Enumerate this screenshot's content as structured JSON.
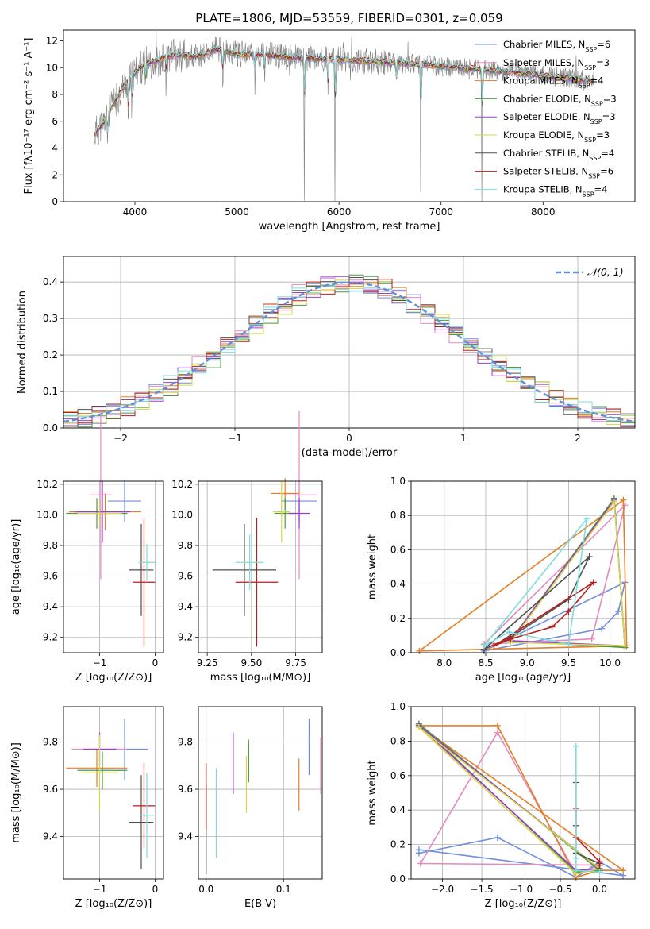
{
  "figure_title": "PLATE=1806, MJD=53559, FIBERID=0301, z=0.059",
  "models": [
    {
      "name": "Chabrier MILES",
      "n": "6",
      "color": "#6f8fdc"
    },
    {
      "name": "Salpeter MILES",
      "n": "3",
      "color": "#e48ac0"
    },
    {
      "name": "Kroupa MILES",
      "n": "4",
      "color": "#e27f27"
    },
    {
      "name": "Chabrier ELODIE",
      "n": "3",
      "color": "#4f9a3c"
    },
    {
      "name": "Salpeter ELODIE",
      "n": "3",
      "color": "#9a3ec9"
    },
    {
      "name": "Kroupa ELODIE",
      "n": "3",
      "color": "#d4d84a"
    },
    {
      "name": "Chabrier STELIB",
      "n": "4",
      "color": "#505050"
    },
    {
      "name": "Salpeter STELIB",
      "n": "6",
      "color": "#b81c1c"
    },
    {
      "name": "Kroupa STELIB",
      "n": "4",
      "color": "#7fdcdc"
    }
  ],
  "chart_data": [
    {
      "id": "spectrum",
      "type": "line",
      "xlabel": "wavelength [Angstrom, rest frame]",
      "ylabel": "Flux [fλ10⁻¹⁷ erg cm⁻² s⁻¹ A⁻¹]",
      "xlim": [
        3300,
        8900
      ],
      "ylim": [
        0,
        12.8
      ],
      "xticks": [
        4000,
        5000,
        6000,
        7000,
        8000
      ],
      "yticks": [
        0,
        2,
        4,
        6,
        8,
        10,
        12
      ],
      "legend": "top-right",
      "continuum_x": [
        3600,
        3700,
        3800,
        3900,
        4000,
        4100,
        4200,
        4300,
        4400,
        4500,
        4600,
        4700,
        4800,
        4900,
        5000,
        5200,
        5500,
        6000,
        6500,
        7000,
        7500,
        8000,
        8500
      ],
      "continuum_y": [
        5.0,
        6.0,
        7.4,
        8.7,
        9.6,
        10.3,
        10.5,
        10.8,
        10.9,
        10.9,
        10.8,
        11.1,
        11.4,
        11.2,
        11.0,
        11.0,
        10.8,
        10.6,
        10.4,
        10.1,
        9.8,
        9.4,
        9.0
      ],
      "absorption_lines": [
        [
          3730,
          4.2
        ],
        [
          3934,
          5.6
        ],
        [
          3969,
          5.8
        ],
        [
          4102,
          8.5
        ],
        [
          4305,
          8.7
        ],
        [
          4862,
          9.0
        ],
        [
          5175,
          8.8
        ],
        [
          5270,
          9.3
        ],
        [
          5660,
          0.3
        ],
        [
          5890,
          7.5
        ],
        [
          5960,
          0.2
        ],
        [
          6563,
          8.6
        ],
        [
          6800,
          0.0
        ],
        [
          7400,
          0.0
        ]
      ]
    },
    {
      "id": "residual-histogram",
      "type": "line",
      "xlabel": "(data-model)/error",
      "ylabel": "Normed distribution",
      "xlim": [
        -2.5,
        2.5
      ],
      "ylim": [
        0,
        0.47
      ],
      "xticks": [
        -2,
        -1,
        0,
        1,
        2
      ],
      "yticks": [
        0.0,
        0.1,
        0.2,
        0.3,
        0.4
      ],
      "legend_label": "𝒩(0, 1)",
      "legend_color": "#5e8fdc"
    },
    {
      "id": "age-vs-Z",
      "type": "scatter",
      "xlabel": "Z [log₁₀(Z/Z⊙)]",
      "ylabel": "age  [log₁₀(age/yr)]",
      "xlim": [
        -1.65,
        0.15
      ],
      "ylim": [
        9.1,
        10.22
      ],
      "xticks": [
        -1,
        0
      ],
      "yticks": [
        9.2,
        9.4,
        9.6,
        9.8,
        10.0,
        10.2
      ],
      "points": [
        {
          "x": -0.55,
          "y": 10.09,
          "xe": 0.3,
          "ye": 0.14
        },
        {
          "x": -0.98,
          "y": 10.13,
          "xe": 0.2,
          "ye": 0.55
        },
        {
          "x": -0.9,
          "y": 10.02,
          "xe": 0.65,
          "ye": 0.12
        },
        {
          "x": -1.05,
          "y": 10.01,
          "xe": 0.55,
          "ye": 0.1
        },
        {
          "x": -0.95,
          "y": 10.02,
          "xe": 0.5,
          "ye": 0.2
        },
        {
          "x": -1.0,
          "y": 10.01,
          "xe": 0.4,
          "ye": 0.08
        },
        {
          "x": -0.25,
          "y": 9.64,
          "xe": 0.22,
          "ye": 0.3
        },
        {
          "x": -0.2,
          "y": 9.56,
          "xe": 0.2,
          "ye": 0.42
        },
        {
          "x": -0.15,
          "y": 9.69,
          "xe": 0.15,
          "ye": 0.12
        }
      ]
    },
    {
      "id": "age-vs-mass",
      "type": "scatter",
      "xlabel": "mass [log₁₀(M/M⊙)]",
      "ylabel": "",
      "xlim": [
        9.2,
        9.9
      ],
      "ylim": [
        9.1,
        10.22
      ],
      "xticks": [
        9.25,
        9.5,
        9.75
      ],
      "yticks": [
        9.2,
        9.4,
        9.6,
        9.8,
        10.0,
        10.2
      ],
      "points": [
        {
          "x": 9.77,
          "y": 10.09,
          "xe": 0.1,
          "ye": 0.14
        },
        {
          "x": 9.77,
          "y": 10.13,
          "xe": 0.1,
          "ye": 0.55
        },
        {
          "x": 9.69,
          "y": 10.14,
          "xe": 0.08,
          "ye": 0.1
        },
        {
          "x": 9.69,
          "y": 10.01,
          "xe": 0.06,
          "ye": 0.1
        },
        {
          "x": 9.77,
          "y": 10.01,
          "xe": 0.06,
          "ye": 0.1
        },
        {
          "x": 9.67,
          "y": 10.02,
          "xe": 0.05,
          "ye": 0.2
        },
        {
          "x": 9.46,
          "y": 9.64,
          "xe": 0.18,
          "ye": 0.3
        },
        {
          "x": 9.53,
          "y": 9.56,
          "xe": 0.12,
          "ye": 0.42
        },
        {
          "x": 9.49,
          "y": 9.69,
          "xe": 0.08,
          "ye": 0.18
        }
      ]
    },
    {
      "id": "mass-weight-vs-age",
      "type": "line",
      "xlabel": "age  [log₁₀(age/yr)]",
      "ylabel": "mass weight",
      "xlim": [
        7.6,
        10.3
      ],
      "ylim": [
        0,
        1.0
      ],
      "xticks": [
        8.0,
        8.5,
        9.0,
        9.5,
        10.0
      ],
      "yticks": [
        0.0,
        0.2,
        0.4,
        0.6,
        0.8,
        1.0
      ],
      "series": [
        {
          "x": [
            8.48,
            9.9,
            10.1,
            10.18,
            8.48
          ],
          "y": [
            0.01,
            0.14,
            0.24,
            0.41,
            0.01
          ]
        },
        {
          "x": [
            8.48,
            9.78,
            10.18,
            8.48
          ],
          "y": [
            0.05,
            0.08,
            0.86,
            0.05
          ]
        },
        {
          "x": [
            7.7,
            10.16,
            10.2,
            7.7
          ],
          "y": [
            0.01,
            0.89,
            0.04,
            0.01
          ]
        },
        {
          "x": [
            8.8,
            10.05,
            10.18,
            8.8
          ],
          "y": [
            0.07,
            0.9,
            0.03,
            0.07
          ]
        },
        {
          "x": [
            8.8,
            10.05,
            10.18,
            8.8
          ],
          "y": [
            0.07,
            0.89,
            0.04,
            0.07
          ]
        },
        {
          "x": [
            8.8,
            10.05,
            10.18,
            8.8
          ],
          "y": [
            0.06,
            0.88,
            0.04,
            0.06
          ]
        },
        {
          "x": [
            8.48,
            8.8,
            9.5,
            9.75,
            8.48
          ],
          "y": [
            0.02,
            0.09,
            0.31,
            0.56,
            0.02
          ]
        },
        {
          "x": [
            8.6,
            8.8,
            9.3,
            9.5,
            9.8,
            8.6
          ],
          "y": [
            0.04,
            0.08,
            0.15,
            0.24,
            0.41,
            0.04
          ]
        },
        {
          "x": [
            8.48,
            8.78,
            9.5,
            9.72,
            8.48
          ],
          "y": [
            0.04,
            0.12,
            0.05,
            0.78,
            0.04
          ]
        }
      ]
    },
    {
      "id": "mass-vs-Z",
      "type": "scatter",
      "xlabel": "Z [log₁₀(Z/Z⊙)]",
      "ylabel": "mass [log₁₀(M/M⊙)]",
      "xlim": [
        -1.65,
        0.15
      ],
      "ylim": [
        9.22,
        9.95
      ],
      "xticks": [
        -1,
        0
      ],
      "yticks": [
        9.4,
        9.6,
        9.8
      ],
      "points": [
        {
          "x": -0.55,
          "y": 9.77,
          "xe": 0.42,
          "ye": 0.13
        },
        {
          "x": -1.0,
          "y": 9.77,
          "xe": 0.5,
          "ye": 0.07
        },
        {
          "x": -1.05,
          "y": 9.69,
          "xe": 0.55,
          "ye": 0.08
        },
        {
          "x": -0.95,
          "y": 9.68,
          "xe": 0.45,
          "ye": 0.08
        },
        {
          "x": -1.0,
          "y": 9.77,
          "xe": 0.3,
          "ye": 0.07
        },
        {
          "x": -1.0,
          "y": 9.67,
          "xe": 0.32,
          "ye": 0.16
        },
        {
          "x": -0.25,
          "y": 9.46,
          "xe": 0.22,
          "ye": 0.2
        },
        {
          "x": -0.2,
          "y": 9.53,
          "xe": 0.2,
          "ye": 0.18
        },
        {
          "x": -0.15,
          "y": 9.49,
          "xe": 0.12,
          "ye": 0.18
        }
      ]
    },
    {
      "id": "mass-vs-ebv",
      "type": "scatter",
      "xlabel": "E(B-V)",
      "ylabel": "",
      "xlim": [
        -0.01,
        0.15
      ],
      "ylim": [
        9.22,
        9.95
      ],
      "xticks": [
        0.0,
        0.1
      ],
      "yticks": [
        9.4,
        9.6,
        9.8
      ],
      "points": [
        {
          "x": 0.133,
          "y": 9.78,
          "xe": 0,
          "ye": 0.12
        },
        {
          "x": 0.148,
          "y": 9.7,
          "xe": 0,
          "ye": 0.12
        },
        {
          "x": 0.12,
          "y": 9.62,
          "xe": 0,
          "ye": 0.11
        },
        {
          "x": 0.055,
          "y": 9.72,
          "xe": 0,
          "ye": 0.09
        },
        {
          "x": 0.035,
          "y": 9.71,
          "xe": 0,
          "ye": 0.13
        },
        {
          "x": 0.052,
          "y": 9.62,
          "xe": 0,
          "ye": 0.12
        },
        {
          "x": 0.0,
          "y": 9.43,
          "xe": 0,
          "ye": 0.19
        },
        {
          "x": 0.0,
          "y": 9.57,
          "xe": 0,
          "ye": 0.14
        },
        {
          "x": 0.013,
          "y": 9.5,
          "xe": 0,
          "ye": 0.19
        }
      ]
    },
    {
      "id": "mass-weight-vs-Z",
      "type": "line",
      "xlabel": "Z [log₁₀(Z/Z⊙)]",
      "ylabel": "mass weight",
      "xlim": [
        -2.4,
        0.45
      ],
      "ylim": [
        0,
        1.0
      ],
      "xticks": [
        -2.0,
        -1.5,
        -1.0,
        -0.5,
        0.0
      ],
      "yticks": [
        0.0,
        0.2,
        0.4,
        0.6,
        0.8,
        1.0
      ],
      "series": [
        {
          "x": [
            -2.3,
            -1.3,
            -0.3,
            0.0,
            0.3,
            -2.3
          ],
          "y": [
            0.15,
            0.24,
            0.01,
            0.1,
            0.02,
            0.17
          ]
        },
        {
          "x": [
            -2.28,
            -1.3,
            -0.3,
            0.0,
            -2.28
          ],
          "y": [
            0.09,
            0.85,
            0.03,
            0.08,
            0.09
          ]
        },
        {
          "x": [
            -2.3,
            -1.3,
            -0.3,
            0.0,
            0.3,
            -2.3
          ],
          "y": [
            0.89,
            0.89,
            0.01,
            0.05,
            0.05,
            0.89
          ]
        },
        {
          "x": [
            -2.3,
            -0.3,
            0.0,
            -2.3
          ],
          "y": [
            0.9,
            0.04,
            0.05,
            0.9
          ]
        },
        {
          "x": [
            -2.3,
            -0.3,
            0.0,
            -2.3
          ],
          "y": [
            0.89,
            0.05,
            0.06,
            0.89
          ]
        },
        {
          "x": [
            -2.3,
            -0.3,
            0.0,
            -2.3
          ],
          "y": [
            0.88,
            0.03,
            0.06,
            0.88
          ]
        },
        {
          "x": [
            -0.3,
            -0.3,
            -0.3,
            0.0,
            0.0
          ],
          "y": [
            0.56,
            0.31,
            0.15,
            0.09,
            0.06
          ]
        },
        {
          "x": [
            -0.3,
            -0.3,
            0.0,
            0.0
          ],
          "y": [
            0.41,
            0.24,
            0.1,
            0.08
          ]
        },
        {
          "x": [
            -0.3,
            -0.3,
            -0.3,
            0.0
          ],
          "y": [
            0.77,
            0.12,
            0.05,
            0.04
          ]
        }
      ]
    }
  ]
}
